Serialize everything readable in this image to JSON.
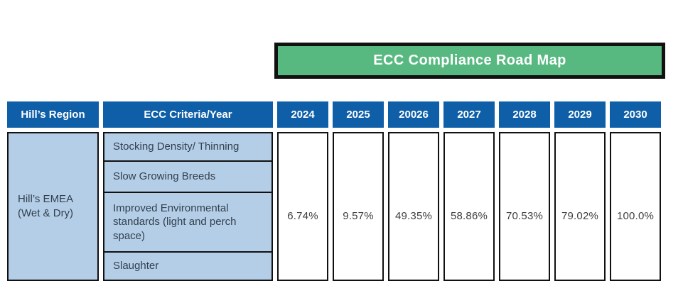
{
  "banner": {
    "title": "ECC Compliance Road Map"
  },
  "table": {
    "header": {
      "region_label": "Hill’s Region",
      "criteria_label": "ECC Criteria/Year",
      "years": [
        "2024",
        "2025",
        "20026",
        "2027",
        "2028",
        "2029",
        "2030"
      ]
    },
    "body": {
      "region": "Hill’s EMEA (Wet & Dry)",
      "criteria": [
        "Stocking Density/ Thinning",
        "Slow Growing Breeds",
        "Improved Environmental standards (light and perch space)",
        "Slaughter"
      ],
      "values": [
        "6.74%",
        "9.57%",
        "49.35%",
        "58.86%",
        "70.53%",
        "79.02%",
        "100.0%"
      ]
    }
  },
  "colors": {
    "header_bg": "#0F5FA8",
    "criteria_bg": "#B5CEE8",
    "banner_bg": "#58B980",
    "border": "#111111",
    "header_text": "#ffffff",
    "body_text": "#31404C"
  }
}
